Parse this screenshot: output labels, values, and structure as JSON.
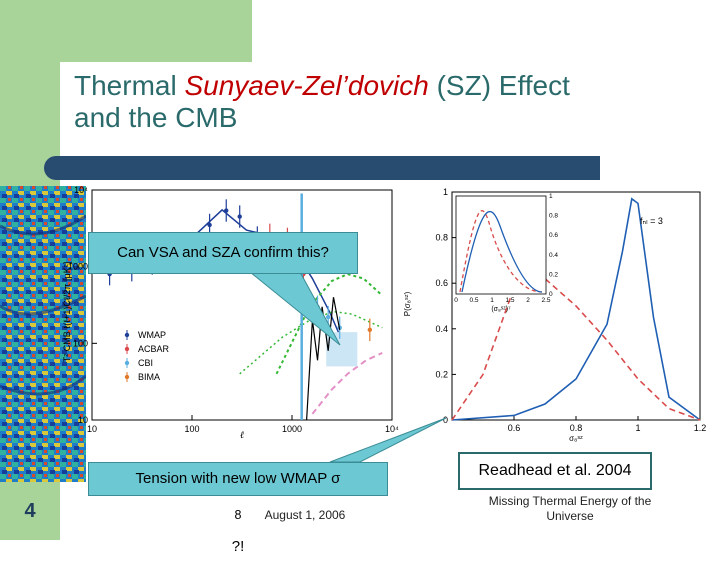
{
  "slide": {
    "title_line1_prefix": "Thermal ",
    "title_line1_accent": "Sunyaev-Zel’dovich",
    "title_line1_suffix": " (SZ) Effect",
    "title_line2": "and the CMB",
    "callout_question": "Can VSA and SZA confirm this?",
    "tension_note": "Tension with new low WMAP σ",
    "tension_sub": "8",
    "tension_tail": " ?!",
    "citation": "Readhead et al. 2004",
    "page_number": "4",
    "date": "August 1, 2006",
    "footer_line1": "Missing Thermal Energy of the",
    "footer_line2": "Universe"
  },
  "colors": {
    "title": "#2b6a6b",
    "accent": "#c00000",
    "callout": "#6cc8d3",
    "bar": "#284b70",
    "green": "#a8d49a"
  },
  "chart_data": [
    {
      "type": "scatter",
      "title": "",
      "xlabel": "ℓ",
      "ylabel": "T² CMB ℓ(ℓ+1)Cℓ/2π [μK²]",
      "xscale": "log",
      "yscale": "log",
      "xlim": [
        10,
        10000
      ],
      "ylim": [
        10,
        10000
      ],
      "xticks": [
        "10",
        "100",
        "1000",
        "10⁴"
      ],
      "yticks": [
        "10",
        "100",
        "1000",
        "10⁴"
      ],
      "legend": [
        "WMAP",
        "ACBAR",
        "CBI",
        "BIMA"
      ],
      "legend_position": "bottom-left"
    },
    {
      "type": "line",
      "title": "",
      "xlabel": "σ₈ˢᶻ",
      "ylabel": "P(σ₈ˢᶻ)",
      "xlim": [
        0.4,
        1.2
      ],
      "ylim": [
        0,
        1
      ],
      "xticks": [
        "0.6",
        "0.8",
        "1",
        "1.2"
      ],
      "yticks": [
        "0",
        "0.2",
        "0.4",
        "0.6",
        "0.8",
        "1"
      ],
      "annotation": "fₙₗ = 3",
      "series": [
        {
          "style": "solid",
          "color": "#1f5fb3",
          "x": [
            0.4,
            0.6,
            0.7,
            0.8,
            0.9,
            0.95,
            0.98,
            1.0,
            1.05,
            1.1,
            1.2
          ],
          "y": [
            0,
            0.02,
            0.07,
            0.18,
            0.42,
            0.74,
            0.97,
            0.95,
            0.45,
            0.1,
            0
          ]
        },
        {
          "style": "dashed",
          "color": "#d94b4b",
          "x": [
            0.4,
            0.5,
            0.6,
            0.7,
            0.8,
            0.9,
            1.0,
            1.1,
            1.2
          ],
          "y": [
            0,
            0.2,
            0.58,
            0.62,
            0.5,
            0.35,
            0.18,
            0.05,
            0
          ]
        }
      ],
      "inset": {
        "xticks": [
          "0",
          "0.5",
          "1",
          "1.5",
          "2",
          "2.5"
        ],
        "yticks": [
          "0",
          "0.2",
          "0.4",
          "0.6",
          "0.8",
          "1"
        ],
        "xlabel": "(σ₈ˢᶻ)⁷"
      }
    }
  ]
}
